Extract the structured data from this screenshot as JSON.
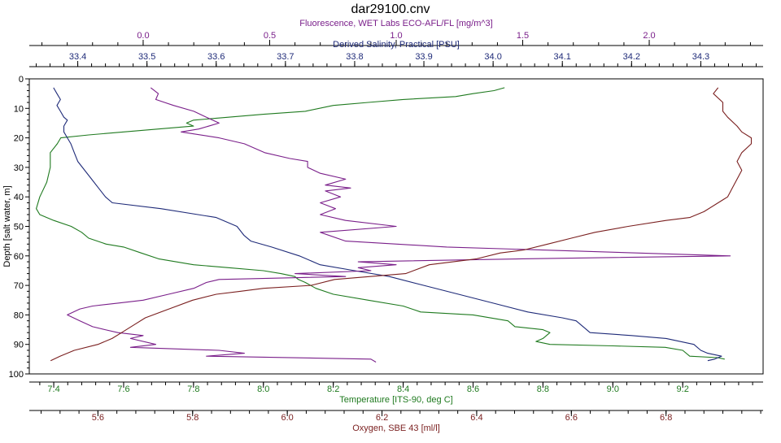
{
  "chart_data": {
    "type": "line",
    "title": "dar29100.cnv",
    "y_axis": {
      "label": "Depth [salt water, m]",
      "range": [
        0,
        100
      ],
      "ticks": [
        0,
        10,
        20,
        30,
        40,
        50,
        60,
        70,
        80,
        90,
        100
      ],
      "inverted": true
    },
    "axes": [
      {
        "id": "fluor",
        "position": "top-outer",
        "label": "Fluorescence, WET Labs ECO-AFL/FL [mg/m^3]",
        "color": "#7a1f8a",
        "range": [
          -0.45,
          2.45
        ],
        "ticks": [
          0.0,
          0.5,
          1.0,
          1.5,
          2.0
        ],
        "tick_labels": [
          "0.0",
          "0.5",
          "1.0",
          "1.5",
          "2.0"
        ],
        "minor_step": 0.1
      },
      {
        "id": "salinity",
        "position": "top-inner",
        "label": "Derived Salinity, Practical [PSU]",
        "color": "#1e2a78",
        "range": [
          33.33,
          34.39
        ],
        "ticks": [
          33.4,
          33.5,
          33.6,
          33.7,
          33.8,
          33.9,
          34.0,
          34.1,
          34.2,
          34.3
        ],
        "tick_labels": [
          "33.4",
          "33.5",
          "33.6",
          "33.7",
          "33.8",
          "33.9",
          "34.0",
          "34.1",
          "34.2",
          "34.3"
        ],
        "minor_step": 0.02
      },
      {
        "id": "temperature",
        "position": "bottom-inner",
        "label": "Temperature [ITS-90, deg C]",
        "color": "#1f7a1f",
        "range": [
          7.33,
          9.43
        ],
        "ticks": [
          7.4,
          7.6,
          7.8,
          8.0,
          8.2,
          8.4,
          8.6,
          8.8,
          9.0,
          9.2
        ],
        "tick_labels": [
          "7.4",
          "7.6",
          "7.8",
          "8.0",
          "8.2",
          "8.4",
          "8.6",
          "8.8",
          "9.0",
          "9.2"
        ],
        "minor_step": 0.04
      },
      {
        "id": "oxygen",
        "position": "bottom-outer",
        "label": "Oxygen, SBE 43 [ml/l]",
        "color": "#7a1f1f",
        "range": [
          5.455,
          7.005
        ],
        "ticks": [
          5.6,
          5.8,
          6.0,
          6.2,
          6.4,
          6.6,
          6.8
        ],
        "tick_labels": [
          "5.6",
          "5.8",
          "6.0",
          "6.2",
          "6.4",
          "6.6",
          "6.8"
        ],
        "minor_step": 0.04
      }
    ],
    "series": [
      {
        "axis": "temperature",
        "color": "#1f7a1f",
        "values": [
          [
            8.69,
            3
          ],
          [
            8.66,
            4
          ],
          [
            8.6,
            5
          ],
          [
            8.55,
            6
          ],
          [
            8.4,
            7
          ],
          [
            8.3,
            8
          ],
          [
            8.2,
            9
          ],
          [
            8.12,
            11
          ],
          [
            8.0,
            12
          ],
          [
            7.9,
            13
          ],
          [
            7.8,
            14
          ],
          [
            7.78,
            15
          ],
          [
            7.8,
            16
          ],
          [
            7.7,
            17
          ],
          [
            7.6,
            18
          ],
          [
            7.5,
            19
          ],
          [
            7.42,
            20
          ],
          [
            7.41,
            22
          ],
          [
            7.39,
            25
          ],
          [
            7.39,
            30
          ],
          [
            7.38,
            35
          ],
          [
            7.36,
            40
          ],
          [
            7.35,
            44
          ],
          [
            7.36,
            46
          ],
          [
            7.4,
            48
          ],
          [
            7.45,
            50
          ],
          [
            7.48,
            52
          ],
          [
            7.5,
            54
          ],
          [
            7.55,
            56
          ],
          [
            7.6,
            57
          ],
          [
            7.65,
            59
          ],
          [
            7.7,
            61
          ],
          [
            7.75,
            62
          ],
          [
            7.8,
            63
          ],
          [
            7.9,
            64
          ],
          [
            8.0,
            65
          ],
          [
            8.05,
            66
          ],
          [
            8.09,
            67
          ],
          [
            8.1,
            68
          ],
          [
            8.12,
            69
          ],
          [
            8.15,
            71
          ],
          [
            8.2,
            73
          ],
          [
            8.3,
            75
          ],
          [
            8.4,
            77
          ],
          [
            8.45,
            79
          ],
          [
            8.6,
            80
          ],
          [
            8.7,
            82
          ],
          [
            8.72,
            84
          ],
          [
            8.8,
            85
          ],
          [
            8.82,
            86
          ],
          [
            8.8,
            88
          ],
          [
            8.78,
            89
          ],
          [
            8.82,
            90
          ],
          [
            9.0,
            90.5
          ],
          [
            9.15,
            91
          ],
          [
            9.2,
            92
          ],
          [
            9.22,
            94
          ],
          [
            9.3,
            94.5
          ],
          [
            9.32,
            95
          ]
        ]
      },
      {
        "axis": "salinity",
        "color": "#1e2a78",
        "values": [
          [
            33.365,
            3
          ],
          [
            33.37,
            5
          ],
          [
            33.375,
            7
          ],
          [
            33.37,
            9
          ],
          [
            33.375,
            11
          ],
          [
            33.38,
            13
          ],
          [
            33.385,
            14
          ],
          [
            33.38,
            16
          ],
          [
            33.38,
            18
          ],
          [
            33.385,
            20
          ],
          [
            33.39,
            22
          ],
          [
            33.395,
            25
          ],
          [
            33.4,
            28
          ],
          [
            33.41,
            31
          ],
          [
            33.42,
            34
          ],
          [
            33.43,
            37
          ],
          [
            33.44,
            40
          ],
          [
            33.45,
            42
          ],
          [
            33.52,
            44
          ],
          [
            33.6,
            47
          ],
          [
            33.63,
            50
          ],
          [
            33.64,
            53
          ],
          [
            33.65,
            55
          ],
          [
            33.68,
            57
          ],
          [
            33.72,
            60
          ],
          [
            33.75,
            63
          ],
          [
            33.8,
            65
          ],
          [
            33.85,
            67
          ],
          [
            33.9,
            70
          ],
          [
            33.95,
            73
          ],
          [
            34.0,
            76
          ],
          [
            34.05,
            79
          ],
          [
            34.1,
            81
          ],
          [
            34.12,
            82
          ],
          [
            34.13,
            84
          ],
          [
            34.14,
            86
          ],
          [
            34.2,
            87
          ],
          [
            34.25,
            88
          ],
          [
            34.29,
            90
          ],
          [
            34.3,
            92
          ],
          [
            34.31,
            93
          ],
          [
            34.33,
            94
          ],
          [
            34.32,
            95
          ],
          [
            34.31,
            95.5
          ]
        ]
      },
      {
        "axis": "fluor",
        "color": "#7a1f8a",
        "values": [
          [
            0.03,
            3
          ],
          [
            0.06,
            5
          ],
          [
            0.05,
            7
          ],
          [
            0.12,
            9
          ],
          [
            0.2,
            11
          ],
          [
            0.25,
            13
          ],
          [
            0.3,
            15
          ],
          [
            0.22,
            17
          ],
          [
            0.15,
            18
          ],
          [
            0.3,
            20
          ],
          [
            0.4,
            22
          ],
          [
            0.48,
            25
          ],
          [
            0.58,
            27
          ],
          [
            0.65,
            28
          ],
          [
            0.65,
            30
          ],
          [
            0.7,
            32
          ],
          [
            0.8,
            34
          ],
          [
            0.72,
            36
          ],
          [
            0.82,
            37
          ],
          [
            0.72,
            38
          ],
          [
            0.78,
            40
          ],
          [
            0.7,
            42
          ],
          [
            0.76,
            44
          ],
          [
            0.7,
            46
          ],
          [
            0.8,
            48
          ],
          [
            1.0,
            50
          ],
          [
            0.7,
            52
          ],
          [
            0.8,
            55
          ],
          [
            1.2,
            57
          ],
          [
            2.32,
            60
          ],
          [
            1.5,
            61
          ],
          [
            0.85,
            62
          ],
          [
            1.0,
            63
          ],
          [
            0.85,
            64
          ],
          [
            0.9,
            65
          ],
          [
            0.6,
            66
          ],
          [
            0.8,
            67
          ],
          [
            0.3,
            68
          ],
          [
            0.25,
            69
          ],
          [
            0.2,
            71
          ],
          [
            0.1,
            73
          ],
          [
            0.0,
            75
          ],
          [
            -0.1,
            76
          ],
          [
            -0.2,
            77
          ],
          [
            -0.25,
            78
          ],
          [
            -0.3,
            80
          ],
          [
            -0.25,
            82
          ],
          [
            -0.2,
            84
          ],
          [
            -0.15,
            85
          ],
          [
            -0.1,
            86
          ],
          [
            0.0,
            87
          ],
          [
            -0.05,
            88
          ],
          [
            0.05,
            90
          ],
          [
            -0.05,
            91
          ],
          [
            0.3,
            92
          ],
          [
            0.4,
            93
          ],
          [
            0.25,
            94
          ],
          [
            0.9,
            95
          ],
          [
            0.92,
            96
          ]
        ]
      },
      {
        "axis": "oxygen",
        "color": "#7a1f1f",
        "values": [
          [
            6.91,
            3
          ],
          [
            6.9,
            5
          ],
          [
            6.92,
            8
          ],
          [
            6.92,
            11
          ],
          [
            6.93,
            13
          ],
          [
            6.95,
            16
          ],
          [
            6.96,
            18
          ],
          [
            6.98,
            20
          ],
          [
            6.98,
            22
          ],
          [
            6.96,
            25
          ],
          [
            6.95,
            28
          ],
          [
            6.96,
            31
          ],
          [
            6.95,
            34
          ],
          [
            6.94,
            37
          ],
          [
            6.93,
            40
          ],
          [
            6.91,
            42
          ],
          [
            6.88,
            45
          ],
          [
            6.85,
            47
          ],
          [
            6.8,
            48
          ],
          [
            6.72,
            50
          ],
          [
            6.65,
            52
          ],
          [
            6.6,
            54
          ],
          [
            6.55,
            56
          ],
          [
            6.5,
            58
          ],
          [
            6.45,
            59
          ],
          [
            6.4,
            61
          ],
          [
            6.3,
            63
          ],
          [
            6.25,
            66
          ],
          [
            6.1,
            68
          ],
          [
            6.05,
            70
          ],
          [
            5.95,
            71
          ],
          [
            5.9,
            72
          ],
          [
            5.85,
            73
          ],
          [
            5.8,
            75
          ],
          [
            5.75,
            78
          ],
          [
            5.7,
            81
          ],
          [
            5.68,
            83
          ],
          [
            5.65,
            86
          ],
          [
            5.63,
            88
          ],
          [
            5.6,
            90
          ],
          [
            5.55,
            92
          ],
          [
            5.52,
            94
          ],
          [
            5.5,
            95.5
          ]
        ]
      }
    ]
  }
}
